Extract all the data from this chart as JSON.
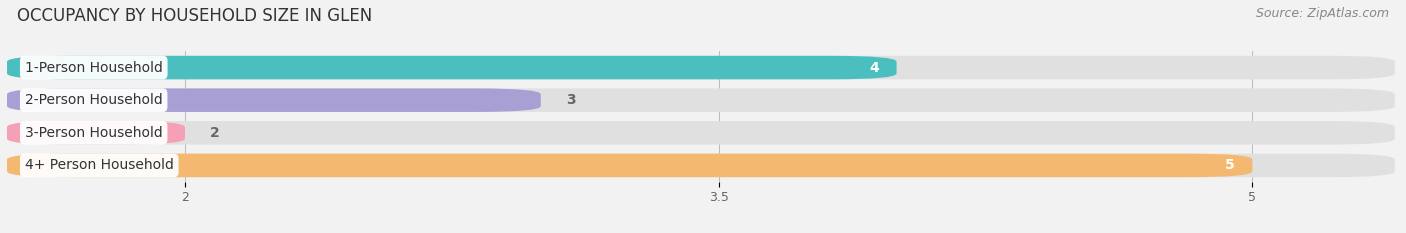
{
  "title": "OCCUPANCY BY HOUSEHOLD SIZE IN GLEN",
  "source": "Source: ZipAtlas.com",
  "categories": [
    "1-Person Household",
    "2-Person Household",
    "3-Person Household",
    "4+ Person Household"
  ],
  "values": [
    4,
    3,
    2,
    5
  ],
  "bar_colors": [
    "#4BBFBF",
    "#A89FD4",
    "#F5A0B5",
    "#F5B870"
  ],
  "value_colors": [
    "white",
    "#666666",
    "#666666",
    "white"
  ],
  "value_ha": [
    "right",
    "left",
    "left",
    "right"
  ],
  "xlim": [
    1.5,
    5.4
  ],
  "xticks": [
    2,
    3.5,
    5
  ],
  "background_color": "#f2f2f2",
  "bar_background_color": "#e0e0e0",
  "title_fontsize": 12,
  "source_fontsize": 9,
  "label_fontsize": 10,
  "value_fontsize": 10,
  "bar_height": 0.72,
  "value_offsets": [
    -0.05,
    0.07,
    0.07,
    -0.05
  ]
}
